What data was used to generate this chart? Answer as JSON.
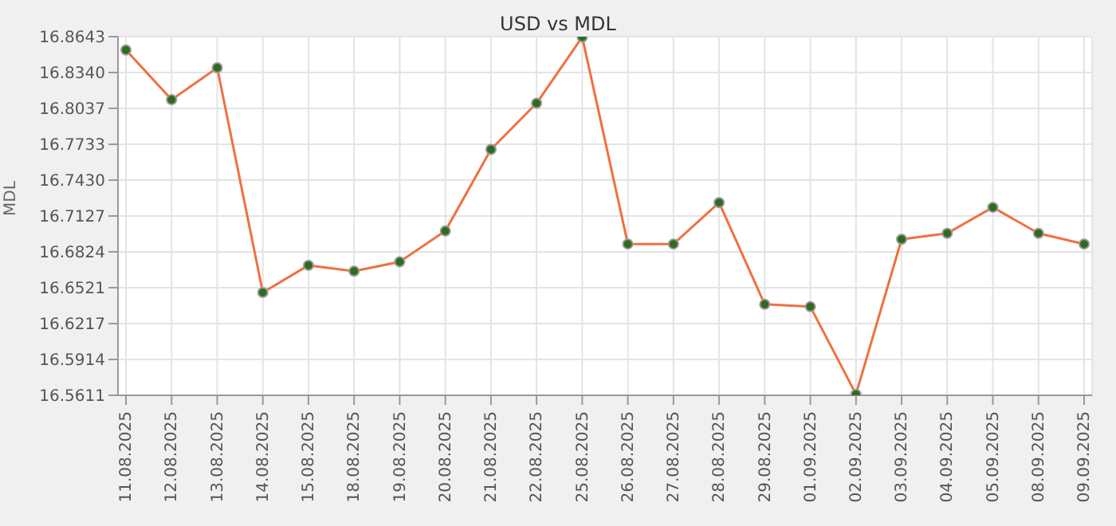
{
  "chart_data": {
    "type": "line",
    "title": "USD vs MDL",
    "ylabel": "MDL",
    "categories": [
      "11.08.2025",
      "12.08.2025",
      "13.08.2025",
      "14.08.2025",
      "15.08.2025",
      "18.08.2025",
      "19.08.2025",
      "20.08.2025",
      "21.08.2025",
      "22.08.2025",
      "25.08.2025",
      "26.08.2025",
      "27.08.2025",
      "28.08.2025",
      "29.08.2025",
      "01.09.2025",
      "02.09.2025",
      "03.09.2025",
      "04.09.2025",
      "05.09.2025",
      "08.09.2025",
      "09.09.2025"
    ],
    "series": [
      {
        "color": "#f07040",
        "values": [
          16.853,
          16.811,
          16.838,
          16.648,
          16.671,
          16.666,
          16.674,
          16.7,
          16.769,
          16.808,
          16.864,
          16.689,
          16.689,
          16.724,
          16.638,
          16.636,
          16.562,
          16.693,
          16.698,
          16.72,
          16.698,
          16.689
        ]
      }
    ],
    "ylim": [
      16.5611,
      16.8643
    ],
    "yticks": [
      16.5611,
      16.5914,
      16.6217,
      16.6521,
      16.6824,
      16.7127,
      {
        "value": 16.743,
        "label": "16.7430"
      },
      16.7733,
      16.8037,
      {
        "value": 16.834,
        "label": "16.8340"
      },
      16.8643
    ],
    "grid": true,
    "marker": "circle",
    "legend": false
  }
}
